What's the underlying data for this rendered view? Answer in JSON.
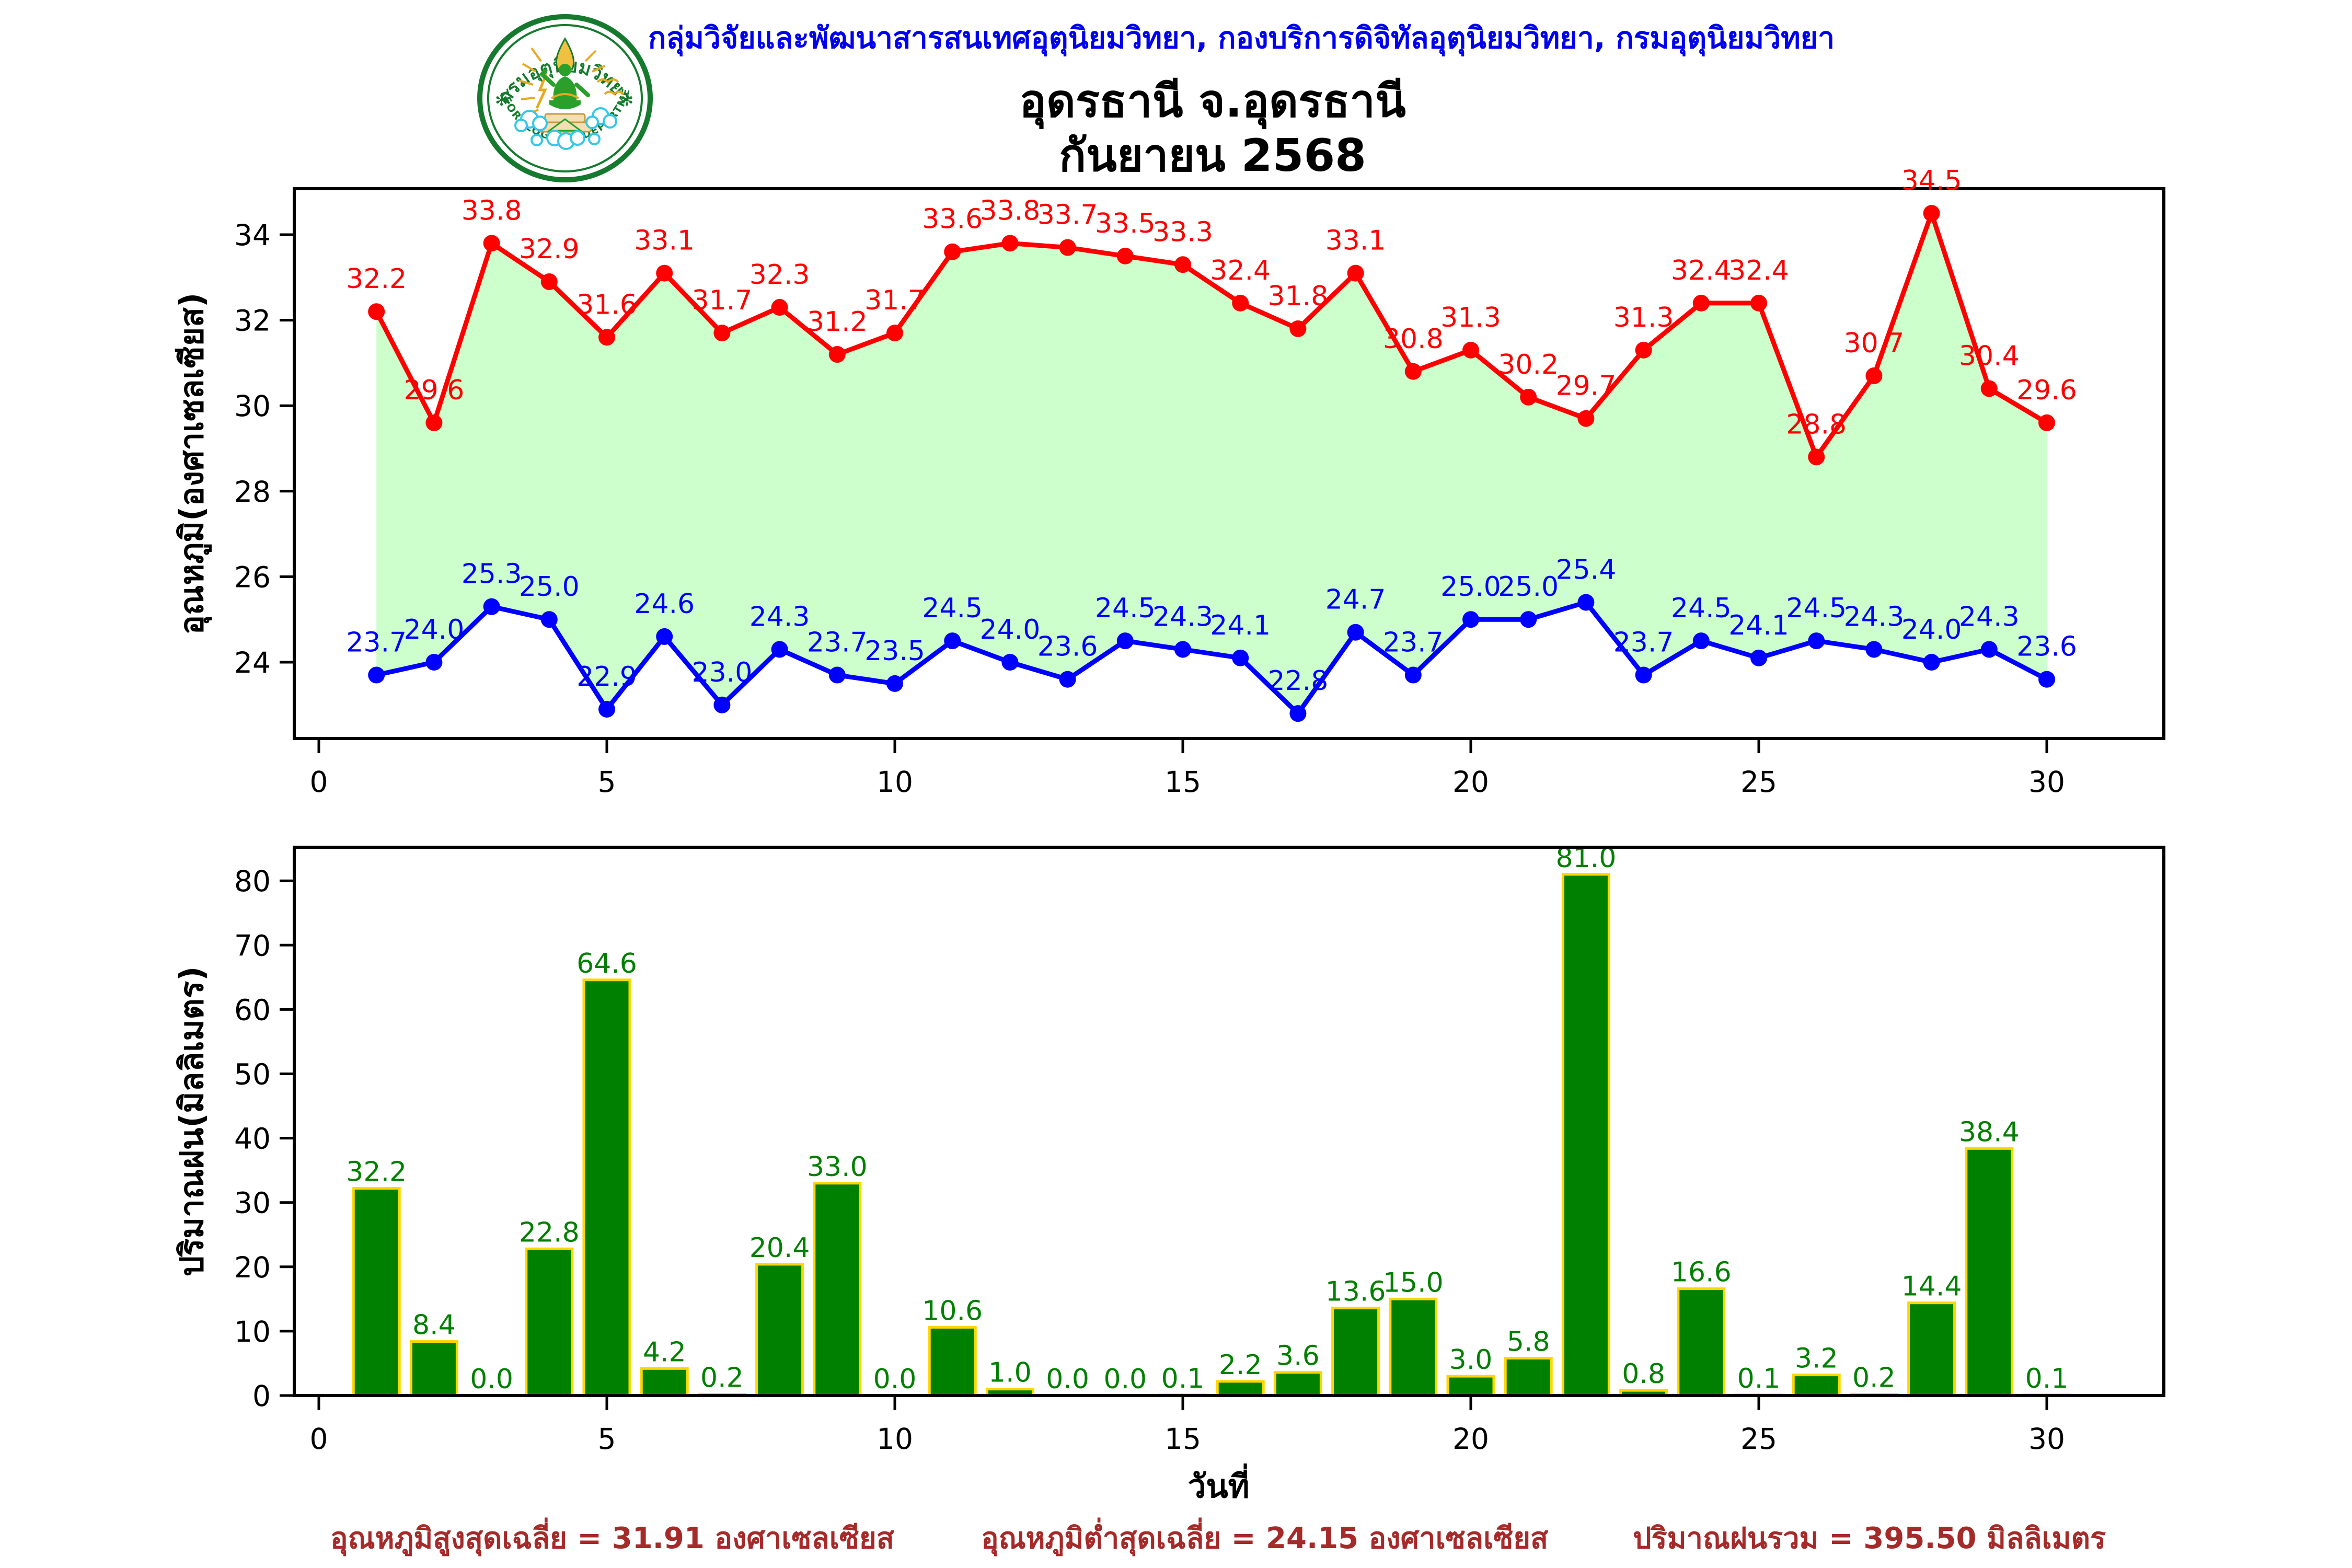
{
  "header": {
    "org_line": "กลุ่มวิจัยและพัฒนาสารสนเทศอุตุนิยมวิทยา, กองบริการดิจิทัลอุตุนิยมวิทยา, กรมอุตุนิยมวิทยา",
    "org_color": "#0000ee",
    "title_line1": "อุดรธานี จ.อุดรธานี",
    "title_line2": "กันยายน 2568",
    "logo": {
      "ring_text_top": "กรมอุตุนิยมวิทยา",
      "ring_text_bottom": "METEOROLOGICAL DEPARTMENT",
      "ring_color": "#157a2e"
    }
  },
  "chart_data": [
    {
      "type": "line",
      "title": "",
      "xlabel": "",
      "ylabel": "อุณหภูมิ(องศาเซลเซียส)",
      "x": [
        1,
        2,
        3,
        4,
        5,
        6,
        7,
        8,
        9,
        10,
        11,
        12,
        13,
        14,
        15,
        16,
        17,
        18,
        19,
        20,
        21,
        22,
        23,
        24,
        25,
        26,
        27,
        28,
        29,
        30
      ],
      "series": [
        {
          "name": "max_temperature",
          "color": "#ff0000",
          "values": [
            32.2,
            29.6,
            33.8,
            32.9,
            31.6,
            33.1,
            31.7,
            32.3,
            31.2,
            31.7,
            33.6,
            33.8,
            33.7,
            33.5,
            33.3,
            32.4,
            31.8,
            33.1,
            30.8,
            31.3,
            30.2,
            29.7,
            31.3,
            32.4,
            32.4,
            28.8,
            30.7,
            34.5,
            30.4,
            29.6
          ]
        },
        {
          "name": "min_temperature",
          "color": "#0000ff",
          "values": [
            23.7,
            24.0,
            25.3,
            25.0,
            22.9,
            24.6,
            23.0,
            24.3,
            23.7,
            23.5,
            24.5,
            24.0,
            23.6,
            24.5,
            24.3,
            24.1,
            22.8,
            24.7,
            23.7,
            25.0,
            25.0,
            25.4,
            23.7,
            24.5,
            24.1,
            24.5,
            24.3,
            24.0,
            24.3,
            23.6
          ]
        }
      ],
      "fill_between_color": "#ccffcc",
      "yticks": [
        24,
        26,
        28,
        30,
        32,
        34
      ],
      "xticks": [
        0,
        5,
        10,
        15,
        20,
        25,
        30
      ],
      "ylim": [
        22.2,
        35.1
      ],
      "xlim": [
        -0.45,
        32.0
      ],
      "grid": false,
      "legend": "none"
    },
    {
      "type": "bar",
      "title": "",
      "xlabel": "วันที่",
      "ylabel": "ปริมาณฝน(มิลลิเมตร)",
      "categories": [
        1,
        2,
        3,
        4,
        5,
        6,
        7,
        8,
        9,
        10,
        11,
        12,
        13,
        14,
        15,
        16,
        17,
        18,
        19,
        20,
        21,
        22,
        23,
        24,
        25,
        26,
        27,
        28,
        29,
        30
      ],
      "values": [
        32.2,
        8.4,
        0.0,
        22.8,
        64.6,
        4.2,
        0.2,
        20.4,
        33.0,
        0.0,
        10.6,
        1.0,
        0.0,
        0.0,
        0.1,
        2.2,
        3.6,
        13.6,
        15.0,
        3.0,
        5.8,
        81.0,
        0.8,
        16.6,
        0.1,
        3.2,
        0.2,
        14.4,
        38.4,
        0.1
      ],
      "bar_color": "#008000",
      "bar_edge_color": "#ffd700",
      "label_color": "#008000",
      "yticks": [
        0,
        10,
        20,
        30,
        40,
        50,
        60,
        70,
        80
      ],
      "xticks": [
        0,
        5,
        10,
        15,
        20,
        25,
        30
      ],
      "ylim": [
        0,
        85.2
      ],
      "xlim": [
        -0.45,
        32.0
      ],
      "grid": false,
      "legend": "none"
    }
  ],
  "footer": {
    "color": "#a52a2a",
    "items": [
      "อุณหภูมิสูงสุดเฉลี่ย = 31.91 องศาเซลเซียส",
      "อุณหภูมิต่ำสุดเฉลี่ย = 24.15 องศาเซลเซียส",
      "ปริมาณฝนรวม = 395.50 มิลลิเมตร"
    ]
  }
}
